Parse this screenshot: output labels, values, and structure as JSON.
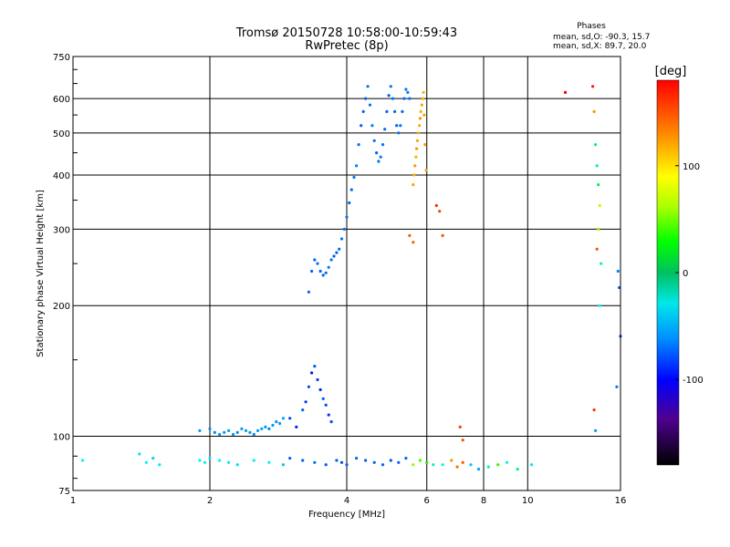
{
  "chart_data": {
    "type": "scatter",
    "title": "Tromsø 20150728 10:58:00-10:59:43",
    "subtitle": "RwPretec (8p)",
    "xlabel": "Frequency [MHz]",
    "ylabel": "Stationary phase Virtual Height [km]",
    "x_scale": "log",
    "y_scale": "log",
    "xlim": [
      1,
      16
    ],
    "ylim": [
      75,
      750
    ],
    "x_ticks": [
      1,
      2,
      4,
      6,
      8,
      10,
      16
    ],
    "y_ticks": [
      75,
      100,
      200,
      300,
      400,
      500,
      600,
      750
    ],
    "grid": true,
    "phase_stats": {
      "heading": "Phases",
      "o_line": "mean, sd,O: -90.3, 15.7",
      "x_line": "mean, sd,X: 89.7, 20.0"
    },
    "colorbar": {
      "label": "[deg]",
      "range": [
        -180,
        180
      ],
      "ticks": [
        100,
        0,
        -100
      ]
    },
    "series": [
      {
        "x": [
          3.3,
          3.35,
          3.4,
          3.45,
          3.5,
          3.55,
          3.6,
          3.65,
          3.7,
          3.75,
          3.8,
          3.85,
          3.9,
          3.95,
          4.0,
          4.05,
          4.1,
          4.15,
          4.2,
          4.25,
          4.3,
          4.35,
          4.4,
          4.45,
          4.5,
          4.55,
          4.6,
          4.65,
          4.7,
          4.75,
          4.8,
          4.85,
          4.9,
          4.95,
          5.0,
          5.05,
          5.1,
          5.15,
          5.2,
          5.25,
          5.3,
          5.35,
          5.4,
          5.45,
          5.5
        ],
        "y": [
          215,
          240,
          255,
          250,
          240,
          235,
          238,
          245,
          255,
          260,
          265,
          270,
          285,
          300,
          320,
          345,
          370,
          395,
          420,
          470,
          520,
          560,
          600,
          640,
          580,
          520,
          480,
          450,
          430,
          440,
          470,
          510,
          560,
          610,
          640,
          600,
          560,
          520,
          500,
          520,
          560,
          600,
          630,
          620,
          600
        ],
        "phase": [
          -110,
          -110,
          -108,
          -105,
          -110,
          -112,
          -108,
          -104,
          -106,
          -110,
          -112,
          -108,
          -105,
          -104,
          -106,
          -110,
          -108,
          -104,
          -102,
          -106,
          -110,
          -108,
          -112,
          -106,
          -104,
          -102,
          -108,
          -110,
          -106,
          -104,
          -106,
          -108,
          -110,
          -112,
          -106,
          -104,
          -108,
          -110,
          -106,
          -104,
          -108,
          -106,
          -104,
          -102,
          -106
        ]
      },
      {
        "x": [
          5.6,
          5.62,
          5.65,
          5.68,
          5.7,
          5.72,
          5.75,
          5.78,
          5.8,
          5.82,
          5.85,
          5.88,
          5.9,
          5.92,
          5.95,
          5.98
        ],
        "y": [
          380,
          400,
          420,
          440,
          460,
          480,
          500,
          520,
          540,
          560,
          580,
          600,
          620,
          550,
          470,
          410
        ],
        "phase": [
          115,
          112,
          118,
          110,
          120,
          116,
          114,
          112,
          118,
          110,
          115,
          112,
          108,
          116,
          120,
          114
        ]
      },
      {
        "x": [
          1.9,
          2.0,
          2.05,
          2.1,
          2.15,
          2.2,
          2.25,
          2.3,
          2.35,
          2.4,
          2.45,
          2.5,
          2.55,
          2.6,
          2.65,
          2.7,
          2.75,
          2.8,
          2.85,
          2.9
        ],
        "y": [
          103,
          104,
          102,
          101,
          102,
          103,
          101,
          102,
          104,
          103,
          102,
          101,
          103,
          104,
          105,
          104,
          106,
          108,
          107,
          110
        ],
        "phase": [
          -92,
          -96,
          -98,
          -94,
          -92,
          -90,
          -95,
          -97,
          -93,
          -91,
          -94,
          -96,
          -92,
          -90,
          -95,
          -98,
          -92,
          -96,
          -94,
          -90
        ]
      },
      {
        "x": [
          3.0,
          3.1,
          3.2,
          3.25,
          3.3,
          3.35,
          3.4,
          3.45,
          3.5,
          3.55,
          3.6,
          3.65,
          3.7
        ],
        "y": [
          110,
          105,
          115,
          120,
          130,
          140,
          145,
          135,
          128,
          122,
          118,
          112,
          108
        ],
        "phase": [
          -120,
          -130,
          -110,
          -125,
          -118,
          -132,
          -115,
          -122,
          -128,
          -112,
          -120,
          -126,
          -118
        ]
      },
      {
        "x": [
          1.05,
          1.4,
          1.45,
          1.5,
          1.55,
          1.9,
          1.95,
          2.0,
          2.1,
          2.2,
          2.3,
          2.5,
          2.7,
          2.9,
          3.0,
          3.2,
          3.4,
          3.6,
          3.8,
          3.9,
          4.0,
          4.2,
          4.4,
          4.6,
          4.8,
          5.0,
          5.2,
          5.4,
          5.6,
          5.8,
          6.0,
          6.2,
          6.5,
          6.8,
          7.0,
          7.2,
          7.5,
          7.8,
          8.2,
          8.6,
          9.0,
          9.5,
          10.2
        ],
        "y": [
          88,
          91,
          87,
          89,
          86,
          88,
          87,
          89,
          88,
          87,
          86,
          88,
          87,
          86,
          89,
          88,
          87,
          86,
          88,
          87,
          86,
          89,
          88,
          87,
          86,
          88,
          87,
          89,
          86,
          88,
          87,
          86,
          86,
          88,
          85,
          87,
          86,
          84,
          85,
          86,
          87,
          84,
          86
        ],
        "phase": [
          -60,
          -70,
          -65,
          -75,
          -68,
          -62,
          -66,
          -70,
          -64,
          -68,
          -72,
          -66,
          -62,
          -80,
          -110,
          -112,
          -108,
          -115,
          -110,
          -118,
          -112,
          -108,
          -114,
          -112,
          -110,
          -116,
          -112,
          -110,
          60,
          40,
          20,
          -40,
          -60,
          120,
          130,
          140,
          -80,
          -90,
          -40,
          30,
          -60,
          -20,
          -70
        ]
      },
      {
        "x": [
          6.3,
          6.4,
          6.5,
          7.1,
          7.2,
          5.5,
          5.6
        ],
        "y": [
          340,
          330,
          290,
          105,
          98,
          290,
          280
        ],
        "phase": [
          150,
          145,
          140,
          148,
          142,
          138,
          135
        ]
      },
      {
        "x": [
          12.1,
          13.9,
          14.0,
          14.1,
          14.2,
          14.3,
          14.4,
          14.3,
          14.2,
          14.5,
          14.4,
          15.8,
          15.9,
          16.0,
          15.7,
          14.0,
          14.1
        ],
        "y": [
          620,
          640,
          560,
          470,
          420,
          380,
          340,
          300,
          270,
          250,
          200,
          240,
          220,
          170,
          130,
          115,
          103
        ],
        "phase": [
          170,
          160,
          120,
          -20,
          -40,
          -10,
          80,
          60,
          140,
          -50,
          -60,
          -100,
          -110,
          -120,
          -105,
          150,
          -90
        ]
      }
    ]
  }
}
